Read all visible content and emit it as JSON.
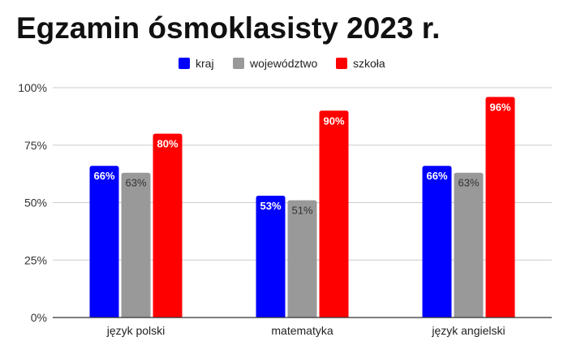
{
  "chart_data": {
    "type": "bar",
    "title": "Egzamin ósmoklasisty 2023 r.",
    "categories": [
      "język polski",
      "matematyka",
      "język angielski"
    ],
    "series": [
      {
        "name": "kraj",
        "values": [
          66,
          53,
          66
        ],
        "color": "#0000ff",
        "labels": [
          "66%",
          "53%",
          "66%"
        ]
      },
      {
        "name": "województwo",
        "values": [
          63,
          51,
          63
        ],
        "color": "#999999",
        "labels": [
          "63%",
          "51%",
          "63%"
        ]
      },
      {
        "name": "szkoła",
        "values": [
          80,
          90,
          96
        ],
        "color": "#ff0000",
        "labels": [
          "80%",
          "90%",
          "96%"
        ]
      }
    ],
    "ylim": [
      0,
      100
    ],
    "yticks": [
      0,
      25,
      50,
      75,
      100
    ],
    "ytick_labels": [
      "0%",
      "25%",
      "50%",
      "75%",
      "100%"
    ],
    "grid": true,
    "legend": "top-center",
    "xlabel": "",
    "ylabel": ""
  }
}
